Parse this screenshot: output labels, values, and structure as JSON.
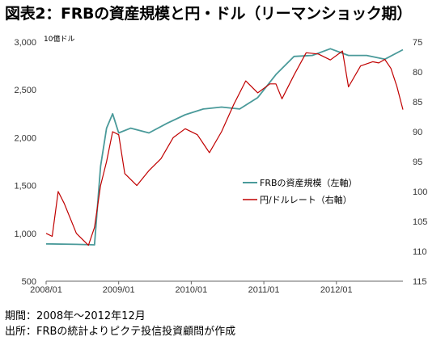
{
  "title": "図表2：FRBの資産規模と円・ドル（リーマンショック期）",
  "unit_label": "10億ドル",
  "notes": {
    "period": "期間：2008年～2012年12月",
    "source": "出所：FRBの統計よりピクテ投信投資顧問が作成"
  },
  "colors": {
    "frb": "#4a9a9a",
    "usdjpy": "#c00000"
  },
  "chart_data": {
    "type": "line",
    "x_ticks": [
      "2008/01",
      "2009/01",
      "2010/01",
      "2011/01",
      "2012/01"
    ],
    "x_range": [
      "2008/01",
      "2012/12"
    ],
    "y_left": {
      "range": [
        500,
        3000
      ],
      "ticks": [
        "500",
        "1,000",
        "1,500",
        "2,000",
        "2,500",
        "3,000"
      ]
    },
    "y_right": {
      "range": [
        115,
        75
      ],
      "inverted": true,
      "ticks": [
        "75",
        "80",
        "85",
        "90",
        "95",
        "100",
        "105",
        "110",
        "115"
      ]
    },
    "series": [
      {
        "name": "FRBの資産規模（左軸）",
        "axis": "left",
        "x": [
          "2008/01",
          "2008/06",
          "2008/09",
          "2008/10",
          "2008/11",
          "2008/12",
          "2009/01",
          "2009/03",
          "2009/06",
          "2009/09",
          "2009/12",
          "2010/03",
          "2010/06",
          "2010/09",
          "2010/12",
          "2011/03",
          "2011/06",
          "2011/09",
          "2011/12",
          "2012/03",
          "2012/06",
          "2012/09",
          "2012/12"
        ],
        "values": [
          890,
          885,
          880,
          1700,
          2100,
          2250,
          2050,
          2100,
          2050,
          2150,
          2240,
          2300,
          2320,
          2300,
          2420,
          2660,
          2850,
          2860,
          2930,
          2860,
          2860,
          2820,
          2920
        ]
      },
      {
        "name": "円/ドルレート（右軸）",
        "axis": "right",
        "x": [
          "2008/01",
          "2008/02",
          "2008/03",
          "2008/04",
          "2008/06",
          "2008/08",
          "2008/09",
          "2008/10",
          "2008/11",
          "2008/12",
          "2009/01",
          "2009/02",
          "2009/04",
          "2009/06",
          "2009/08",
          "2009/10",
          "2009/12",
          "2010/02",
          "2010/04",
          "2010/06",
          "2010/08",
          "2010/10",
          "2010/12",
          "2011/02",
          "2011/03",
          "2011/04",
          "2011/06",
          "2011/08",
          "2011/10",
          "2011/12",
          "2012/02",
          "2012/03",
          "2012/05",
          "2012/07",
          "2012/08",
          "2012/09",
          "2012/10",
          "2012/11",
          "2012/12"
        ],
        "values": [
          107,
          107.5,
          100,
          102,
          107,
          109,
          106,
          99,
          95,
          90,
          90.5,
          97,
          99,
          96.5,
          94.5,
          91,
          89.5,
          90.5,
          93.5,
          90,
          85.5,
          81.5,
          83.5,
          82,
          82,
          84.5,
          80.5,
          76.8,
          77,
          78,
          76.5,
          82.5,
          79,
          78.3,
          78.5,
          77.9,
          79.4,
          82.4,
          86.3
        ]
      }
    ],
    "grid": false,
    "legend_position": "center-right"
  }
}
